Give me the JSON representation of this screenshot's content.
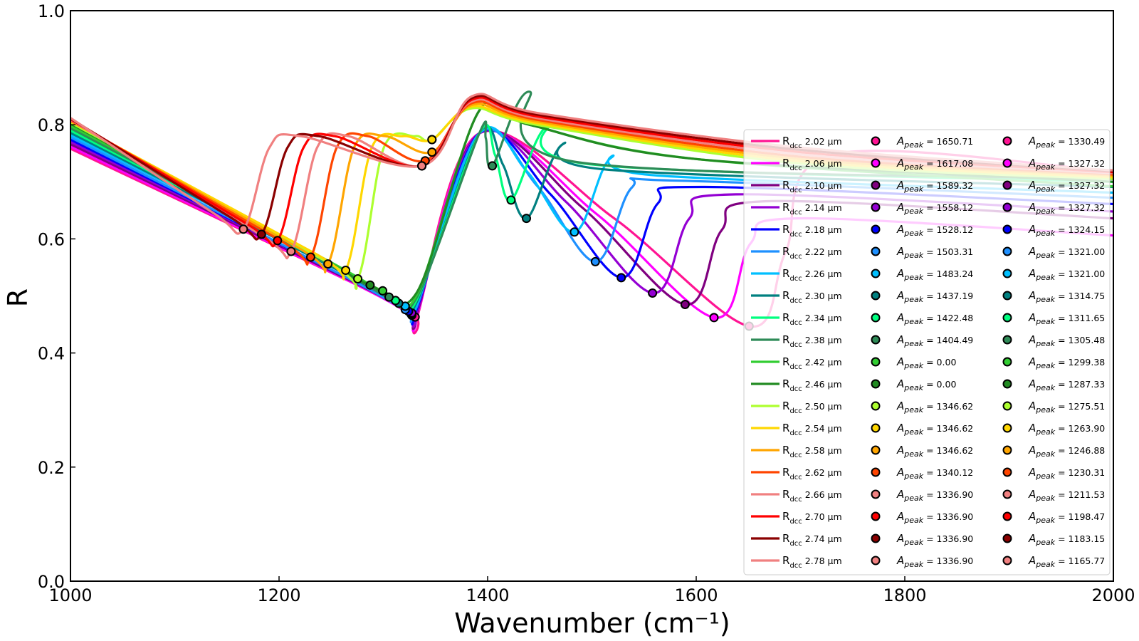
{
  "chart_data": {
    "type": "line",
    "xlabel": "Wavenumber (cm⁻¹)",
    "ylabel": "R",
    "xlim": [
      1000,
      2000
    ],
    "ylim": [
      0.0,
      1.0
    ],
    "xticks": [
      "1000",
      "1200",
      "1400",
      "1600",
      "1800",
      "2000"
    ],
    "yticks": [
      "0.0",
      "0.2",
      "0.4",
      "0.6",
      "0.8",
      "1.0"
    ],
    "grid": false,
    "legend_position": "right",
    "series": [
      {
        "name": "R_dcc 2.02 µm",
        "label_main": "R",
        "label_sub": "dcc",
        "label_rest": " 2.02 µm",
        "color": "#ff1493",
        "peak1_label": "A_peak = 1650.71",
        "peak2_label": "A_peak = 1330.49",
        "peak1": [
          1650.71,
          0.447
        ],
        "peak2": [
          1330.49,
          0.463
        ],
        "left_start": 0.758,
        "right_end": 0.718
      },
      {
        "name": "R_dcc 2.06 µm",
        "label_main": "R",
        "label_sub": "dcc",
        "label_rest": " 2.06 µm",
        "color": "#ff00ff",
        "peak1_label": "A_peak = 1617.08",
        "peak2_label": "A_peak = 1327.32",
        "peak1": [
          1617.08,
          0.462
        ],
        "peak2": [
          1327.32,
          0.466
        ],
        "left_start": 0.762,
        "right_end": 0.606
      },
      {
        "name": "R_dcc 2.10 µm",
        "label_main": "R",
        "label_sub": "dcc",
        "label_rest": " 2.10 µm",
        "color": "#800080",
        "peak1_label": "A_peak = 1589.32",
        "peak2_label": "A_peak = 1327.32",
        "peak1": [
          1589.32,
          0.485
        ],
        "peak2": [
          1327.32,
          0.468
        ],
        "left_start": 0.766,
        "right_end": 0.636
      },
      {
        "name": "R_dcc 2.14 µm",
        "label_main": "R",
        "label_sub": "dcc",
        "label_rest": " 2.14 µm",
        "color": "#9400d3",
        "peak1_label": "A_peak = 1558.12",
        "peak2_label": "A_peak = 1327.32",
        "peak1": [
          1558.12,
          0.505
        ],
        "peak2": [
          1327.32,
          0.47
        ],
        "left_start": 0.77,
        "right_end": 0.648
      },
      {
        "name": "R_dcc 2.18 µm",
        "label_main": "R",
        "label_sub": "dcc",
        "label_rest": " 2.18 µm",
        "color": "#0000ff",
        "peak1_label": "A_peak = 1528.12",
        "peak2_label": "A_peak = 1324.15",
        "peak1": [
          1528.12,
          0.532
        ],
        "peak2": [
          1324.15,
          0.473
        ],
        "left_start": 0.774,
        "right_end": 0.661
      },
      {
        "name": "R_dcc 2.22 µm",
        "label_main": "R",
        "label_sub": "dcc",
        "label_rest": " 2.22 µm",
        "color": "#1e90ff",
        "peak1_label": "A_peak = 1503.31",
        "peak2_label": "A_peak = 1321.00",
        "peak1": [
          1503.31,
          0.56
        ],
        "peak2": [
          1321.0,
          0.476
        ],
        "left_start": 0.778,
        "right_end": 0.672
      },
      {
        "name": "R_dcc 2.26 µm",
        "label_main": "R",
        "label_sub": "dcc",
        "label_rest": " 2.26 µm",
        "color": "#00bfff",
        "peak1_label": "A_peak = 1483.24",
        "peak2_label": "A_peak = 1321.00",
        "peak1": [
          1483.24,
          0.612
        ],
        "peak2": [
          1321.0,
          0.482
        ],
        "left_start": 0.782,
        "right_end": 0.681
      },
      {
        "name": "R_dcc 2.30 µm",
        "label_main": "R",
        "label_sub": "dcc",
        "label_rest": " 2.30 µm",
        "color": "#008080",
        "peak1_label": "A_peak = 1437.19",
        "peak2_label": "A_peak = 1314.75",
        "peak1": [
          1437.19,
          0.636
        ],
        "peak2": [
          1314.75,
          0.487
        ],
        "left_start": 0.786,
        "right_end": 0.691
      },
      {
        "name": "R_dcc 2.34 µm",
        "label_main": "R",
        "label_sub": "dcc",
        "label_rest": " 2.34 µm",
        "color": "#00ff7f",
        "peak1_label": "A_peak = 1422.48",
        "peak2_label": "A_peak = 1311.65",
        "peak1": [
          1422.48,
          0.668
        ],
        "peak2": [
          1311.65,
          0.492
        ],
        "left_start": 0.79,
        "right_end": 0.7
      },
      {
        "name": "R_dcc 2.38 µm",
        "label_main": "R",
        "label_sub": "dcc",
        "label_rest": " 2.38 µm",
        "color": "#2e8b57",
        "peak1_label": "A_peak = 1404.49",
        "peak2_label": "A_peak = 1305.48",
        "peak1": [
          1404.49,
          0.728
        ],
        "peak2": [
          1305.48,
          0.498
        ],
        "left_start": 0.794,
        "right_end": 0.705
      },
      {
        "name": "R_dcc 2.42 µm",
        "label_main": "R",
        "label_sub": "dcc",
        "label_rest": " 2.42 µm",
        "color": "#32cd32",
        "peak1_label": "A_peak = 0.00",
        "peak2_label": "A_peak = 1299.38",
        "peak1": null,
        "peak2": [
          1299.38,
          0.509
        ],
        "left_start": 0.798,
        "right_end": 0.692
      },
      {
        "name": "R_dcc 2.46 µm",
        "label_main": "R",
        "label_sub": "dcc",
        "label_rest": " 2.46 µm",
        "color": "#228b22",
        "peak1_label": "A_peak = 0.00",
        "peak2_label": "A_peak = 1287.33",
        "peak1": null,
        "peak2": [
          1287.33,
          0.519
        ],
        "left_start": 0.802,
        "right_end": 0.7
      },
      {
        "name": "R_dcc 2.50 µm",
        "label_main": "R",
        "label_sub": "dcc",
        "label_rest": " 2.50 µm",
        "color": "#adff2f",
        "peak1_label": "A_peak = 1346.62",
        "peak2_label": "A_peak = 1275.51",
        "peak1": [
          1346.62,
          0.774
        ],
        "peak2": [
          1275.51,
          0.53
        ],
        "left_start": 0.804,
        "right_end": 0.705
      },
      {
        "name": "R_dcc 2.54 µm",
        "label_main": "R",
        "label_sub": "dcc",
        "label_rest": " 2.54 µm",
        "color": "#ffd700",
        "peak1_label": "A_peak = 1346.62",
        "peak2_label": "A_peak = 1263.90",
        "peak1": [
          1346.62,
          0.774
        ],
        "peak2": [
          1263.9,
          0.545
        ],
        "left_start": 0.806,
        "right_end": 0.708
      },
      {
        "name": "R_dcc 2.58 µm",
        "label_main": "R",
        "label_sub": "dcc",
        "label_rest": " 2.58 µm",
        "color": "#ffa500",
        "peak1_label": "A_peak = 1346.62",
        "peak2_label": "A_peak = 1246.88",
        "peak1": [
          1346.62,
          0.752
        ],
        "peak2": [
          1246.88,
          0.556
        ],
        "left_start": 0.807,
        "right_end": 0.711
      },
      {
        "name": "R_dcc 2.62 µm",
        "label_main": "R",
        "label_sub": "dcc",
        "label_rest": " 2.62 µm",
        "color": "#ff4500",
        "peak1_label": "A_peak = 1340.12",
        "peak2_label": "A_peak = 1230.31",
        "peak1": [
          1340.12,
          0.737
        ],
        "peak2": [
          1230.31,
          0.568
        ],
        "left_start": 0.808,
        "right_end": 0.713
      },
      {
        "name": "R_dcc 2.66 µm",
        "label_main": "R",
        "label_sub": "dcc",
        "label_rest": " 2.66 µm",
        "color": "#f08080",
        "peak1_label": "A_peak = 1336.90",
        "peak2_label": "A_peak = 1211.53",
        "peak1": [
          1336.9,
          0.728
        ],
        "peak2": [
          1211.53,
          0.578
        ],
        "left_start": 0.809,
        "right_end": 0.715
      },
      {
        "name": "R_dcc 2.70 µm",
        "label_main": "R",
        "label_sub": "dcc",
        "label_rest": " 2.70 µm",
        "color": "#ff0000",
        "peak1_label": "A_peak = 1336.90",
        "peak2_label": "A_peak = 1198.47",
        "peak1": [
          1336.9,
          0.728
        ],
        "peak2": [
          1198.47,
          0.597
        ],
        "left_start": 0.81,
        "right_end": 0.717
      },
      {
        "name": "R_dcc 2.74 µm",
        "label_main": "R",
        "label_sub": "dcc",
        "label_rest": " 2.74 µm",
        "color": "#8b0000",
        "peak1_label": "A_peak = 1336.90",
        "peak2_label": "A_peak = 1183.15",
        "peak1": [
          1336.9,
          0.728
        ],
        "peak2": [
          1183.15,
          0.608
        ],
        "left_start": 0.811,
        "right_end": 0.719
      },
      {
        "name": "R_dcc 2.78 µm",
        "label_main": "R",
        "label_sub": "dcc",
        "label_rest": " 2.78 µm",
        "color": "#f08080",
        "peak1_label": "A_peak = 1336.90",
        "peak2_label": "A_peak = 1165.77",
        "peak1": [
          1336.9,
          0.728
        ],
        "peak2": [
          1165.77,
          0.617
        ],
        "left_start": 0.812,
        "right_end": 0.72
      }
    ]
  }
}
